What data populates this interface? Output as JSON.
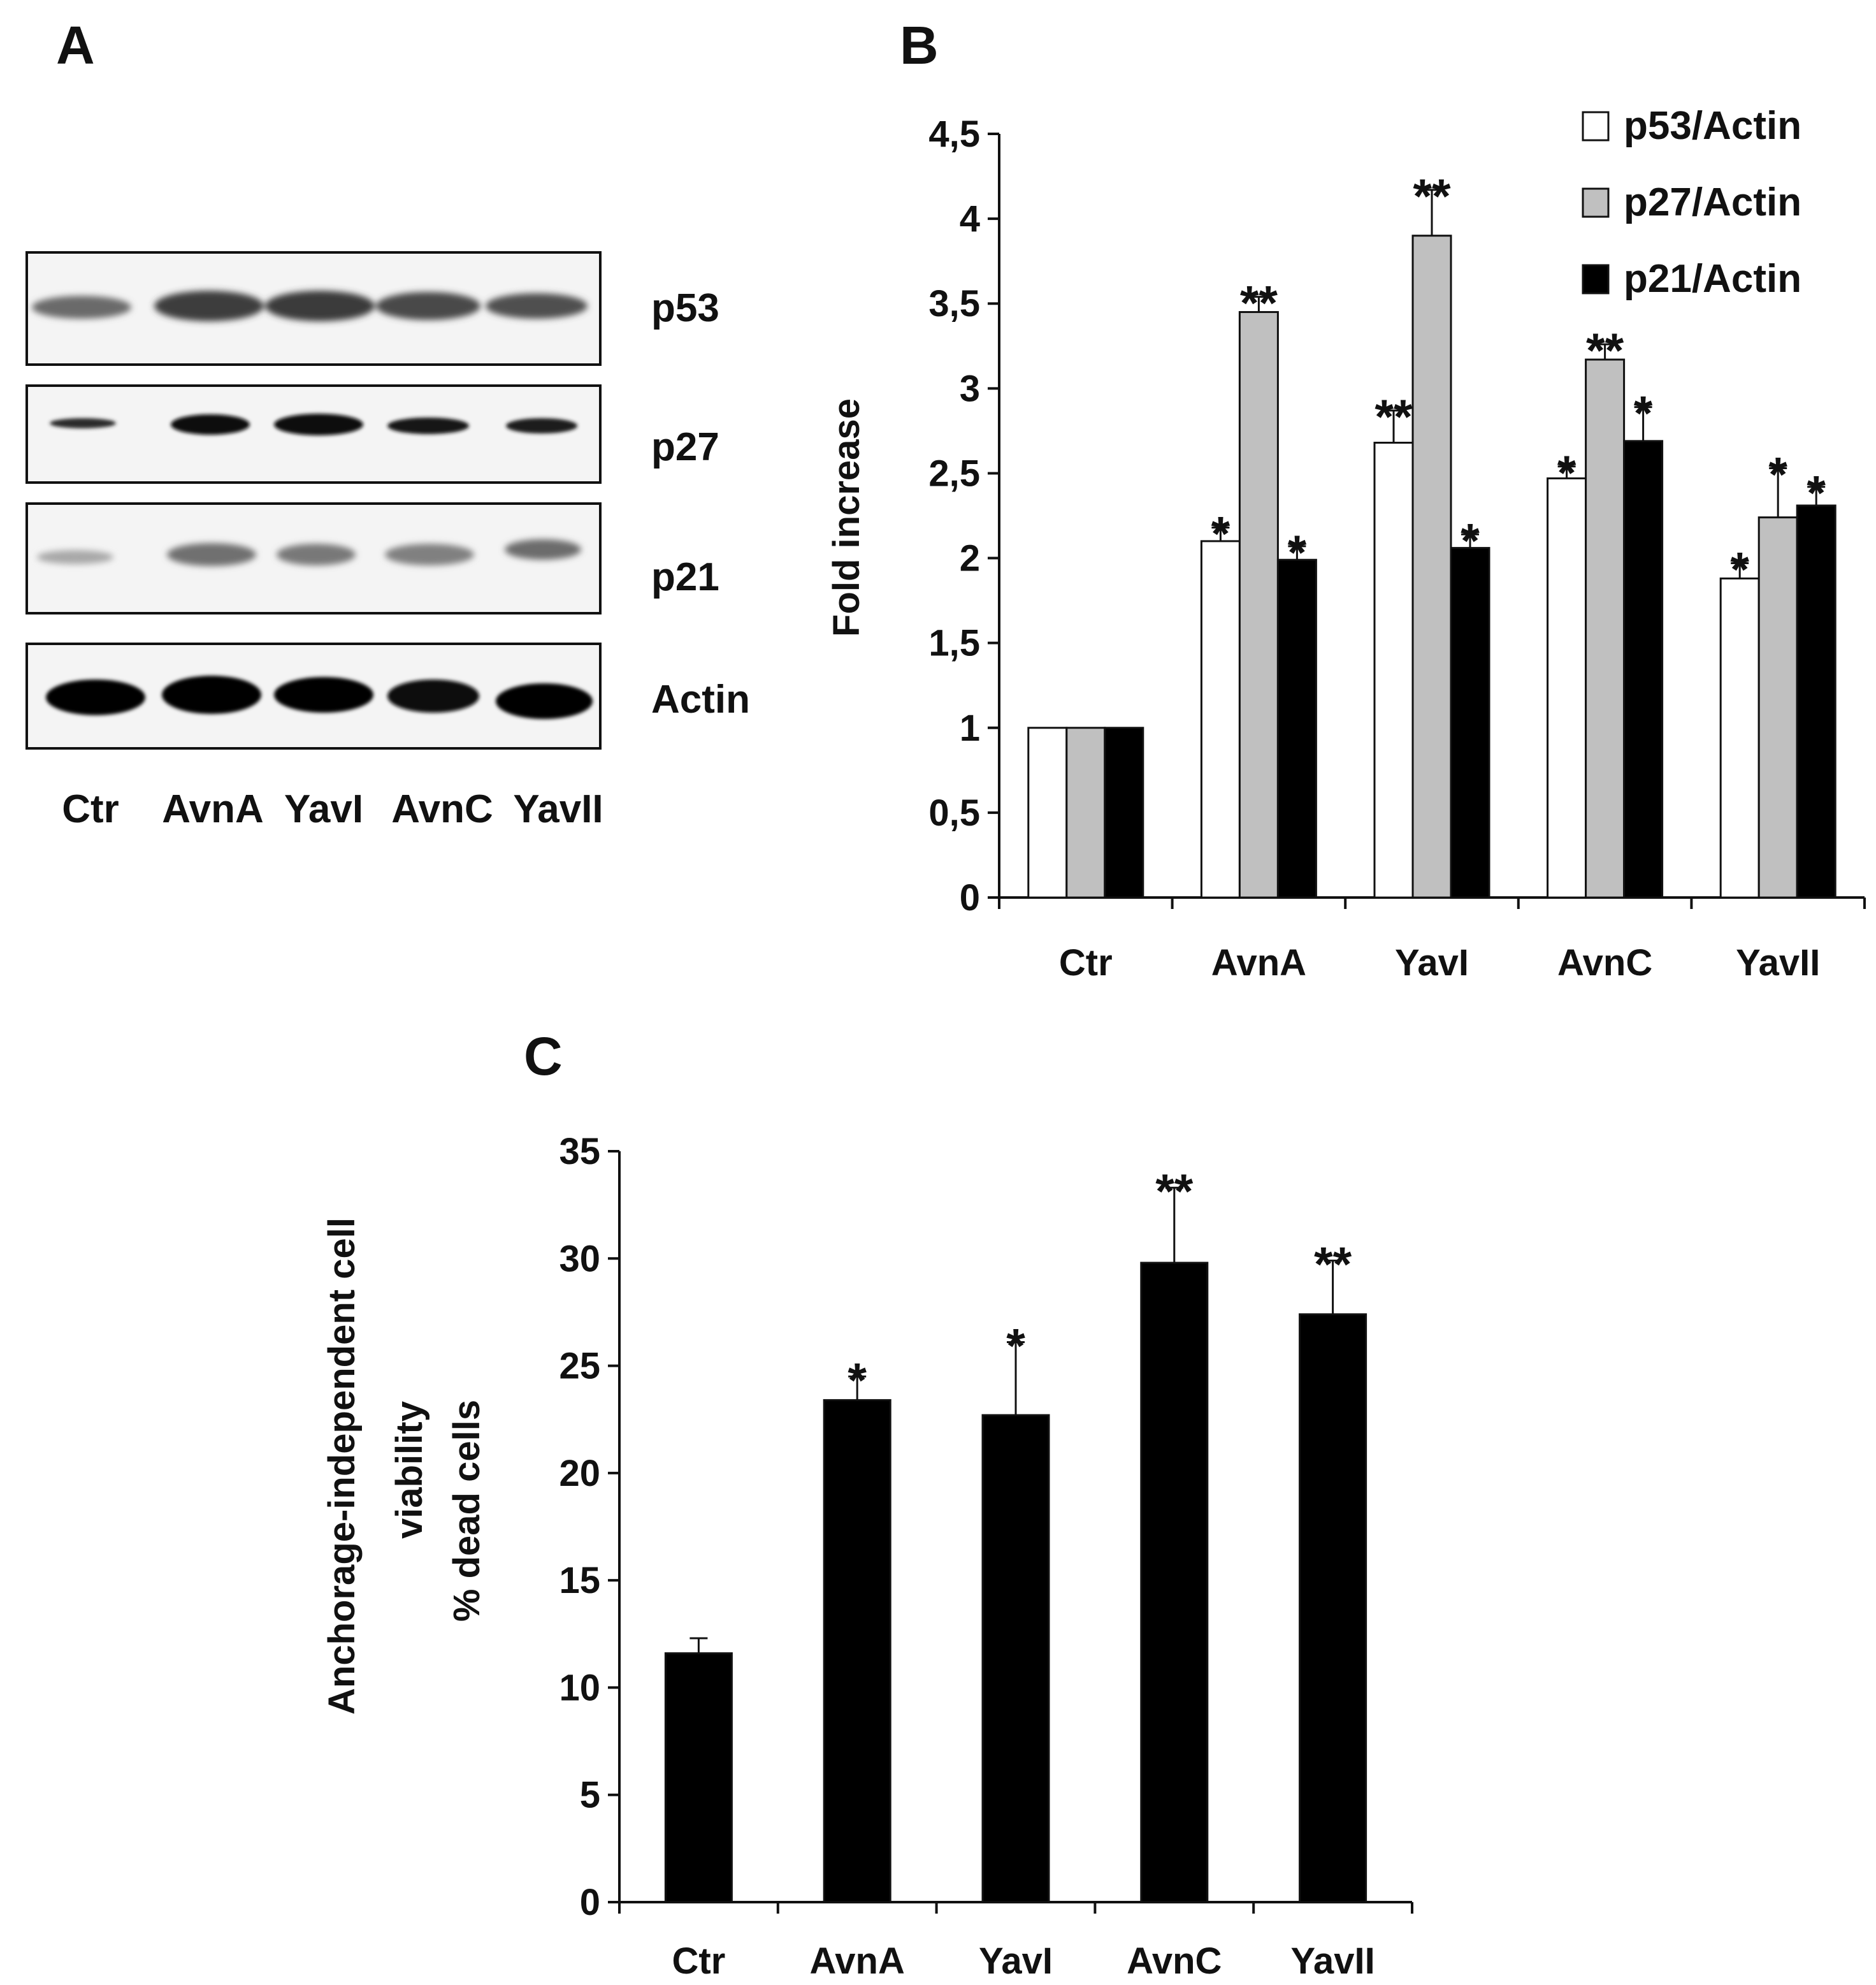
{
  "panels": {
    "a": "A",
    "b": "B",
    "c": "C"
  },
  "blot": {
    "proteins": [
      "p53",
      "p27",
      "p21",
      "Actin"
    ],
    "lanes": [
      "Ctr",
      "AvnA",
      "YavI",
      "AvnC",
      "YavII"
    ]
  },
  "colors": {
    "white_bar": "#ffffff",
    "gray_bar": "#c0c0c0",
    "black_bar": "#000000",
    "axis": "#111111"
  },
  "chart_data": [
    {
      "id": "B",
      "type": "bar",
      "title": "",
      "xlabel": "",
      "ylabel": "Fold increase",
      "ylim": [
        0,
        4.5
      ],
      "yticks": [
        "0",
        "0,5",
        "1",
        "1,5",
        "2",
        "2,5",
        "3",
        "3,5",
        "4",
        "4,5"
      ],
      "categories": [
        "Ctr",
        "AvnA",
        "YavI",
        "AvnC",
        "YavII"
      ],
      "legend_position": "top-right",
      "series": [
        {
          "name": "p53/Actin",
          "color": "#ffffff",
          "values": [
            1,
            2.1,
            2.68,
            2.47,
            1.88
          ],
          "errors": [
            0,
            0.08,
            0.19,
            0.07,
            0.09
          ],
          "significance": [
            "",
            "*",
            "**",
            "*",
            "*"
          ]
        },
        {
          "name": "p27/Actin",
          "color": "#c0c0c0",
          "values": [
            1,
            3.45,
            3.9,
            3.17,
            2.24
          ],
          "errors": [
            0,
            0.09,
            0.27,
            0.09,
            0.29
          ],
          "significance": [
            "",
            "**",
            "**",
            "**",
            "*"
          ]
        },
        {
          "name": "p21/Actin",
          "color": "#000000",
          "values": [
            1,
            1.99,
            2.06,
            2.69,
            2.31
          ],
          "errors": [
            0,
            0.08,
            0.08,
            0.2,
            0.11
          ],
          "significance": [
            "",
            "*",
            "*",
            "*",
            "*"
          ]
        }
      ]
    },
    {
      "id": "C",
      "type": "bar",
      "title": "",
      "xlabel": "",
      "ylabel": [
        "Anchorage-independent  cell",
        "viability",
        "% dead cells"
      ],
      "ylim": [
        0,
        35
      ],
      "yticks": [
        "0",
        "5",
        "10",
        "15",
        "20",
        "25",
        "30",
        "35"
      ],
      "categories": [
        "Ctr",
        "AvnA",
        "YavI",
        "AvnC",
        "YavII"
      ],
      "series": [
        {
          "name": "% dead cells",
          "color": "#000000",
          "values": [
            11.6,
            23.4,
            22.7,
            29.8,
            27.4
          ],
          "errors": [
            0.7,
            1.1,
            3.4,
            3.5,
            2.5
          ],
          "significance": [
            "",
            "*",
            "*",
            "**",
            "**"
          ]
        }
      ]
    }
  ]
}
